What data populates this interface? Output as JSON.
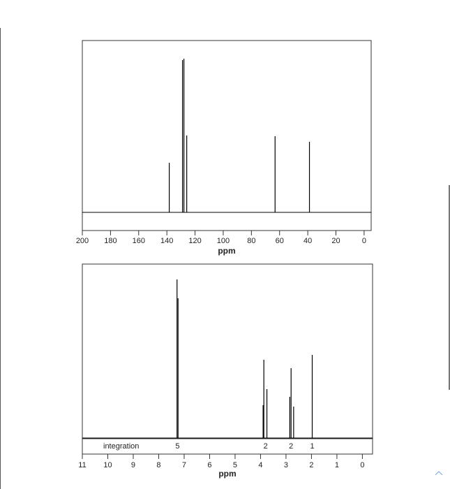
{
  "chart_data": [
    {
      "type": "spectrum",
      "x_label": "ppm",
      "x": [
        138.3,
        128.9,
        127.9,
        125.9,
        63.2,
        38.8
      ],
      "values": [
        71,
        218,
        220,
        110,
        109,
        101
      ],
      "color": "#000000",
      "xlim": [
        200,
        -5
      ],
      "xticks": [
        200,
        180,
        160,
        140,
        120,
        100,
        80,
        60,
        40,
        20,
        0
      ],
      "ylim": [
        -26,
        246
      ]
    },
    {
      "type": "spectrum",
      "x_label": "ppm",
      "x": [
        7.28,
        7.24,
        3.9,
        3.87,
        3.75,
        2.85,
        2.8,
        2.7,
        1.97
      ],
      "values": [
        227,
        200,
        47,
        112,
        70,
        59,
        100,
        45,
        119
      ],
      "color": "#000000",
      "xlim": [
        11,
        -0.4
      ],
      "xticks": [
        11,
        10,
        9,
        8,
        7,
        6,
        5,
        4,
        3,
        2,
        1,
        0
      ],
      "ylim": [
        -23,
        249
      ],
      "integration": {
        "label": "integration",
        "x": [
          7.26,
          3.8,
          2.8,
          1.97
        ],
        "values": [
          5,
          2,
          2,
          1
        ]
      }
    }
  ]
}
